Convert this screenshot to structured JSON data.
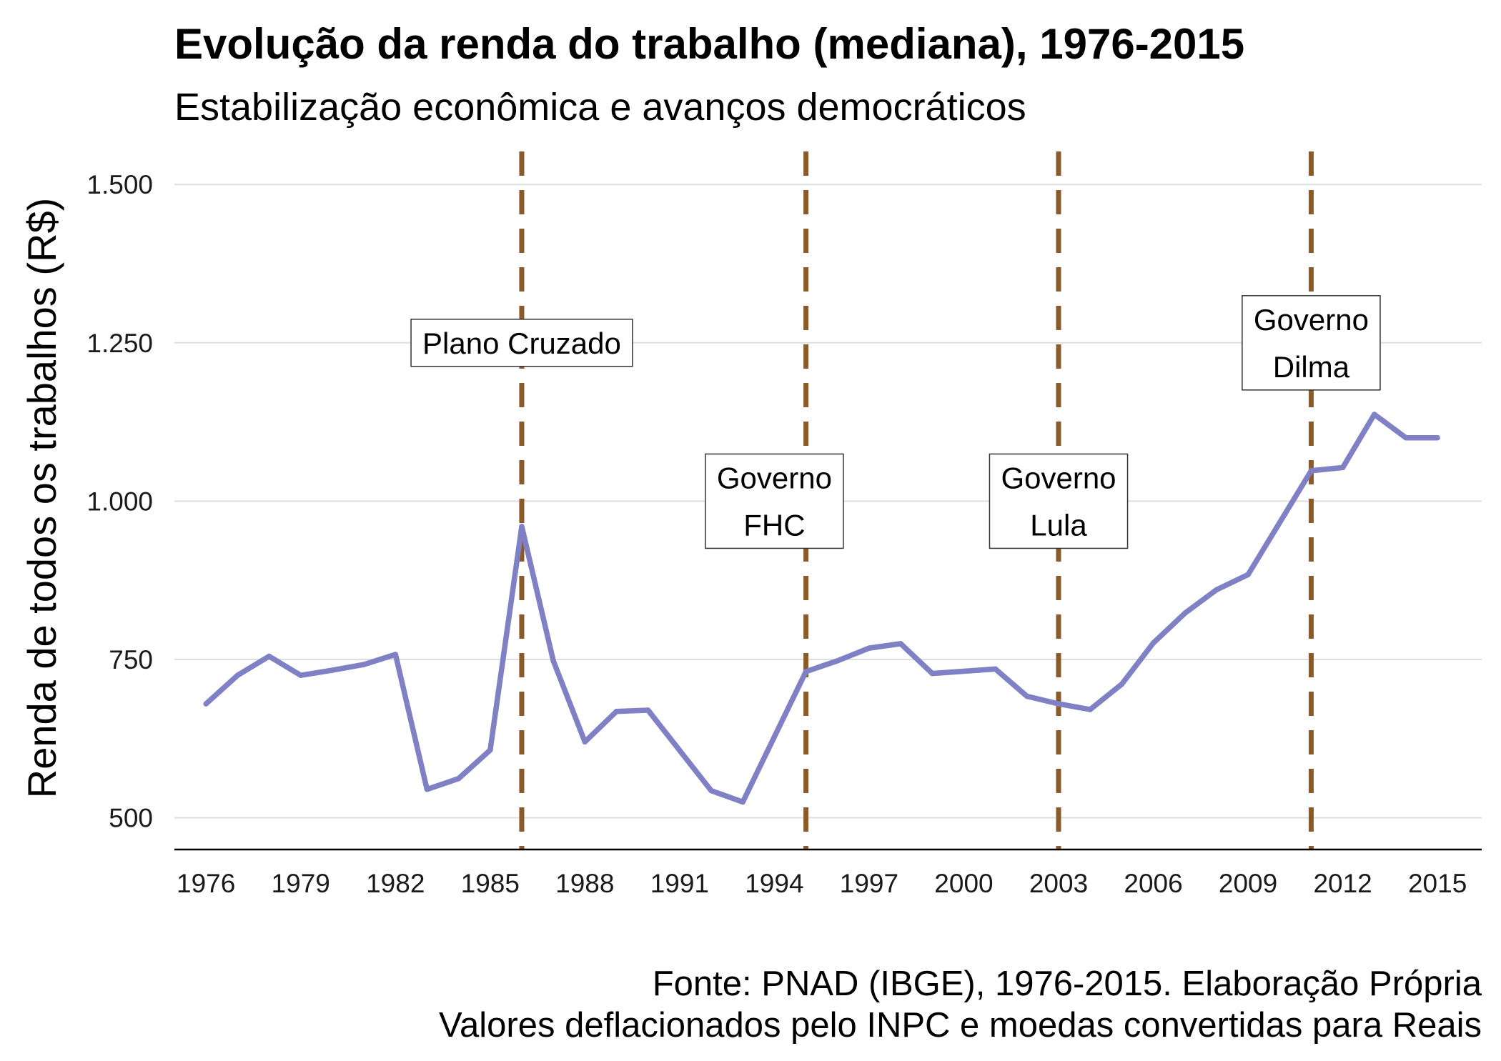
{
  "chart_data": {
    "type": "line",
    "title": "Evolução da renda do trabalho (mediana), 1976-2015",
    "subtitle": "Estabilização econômica e avanços democráticos",
    "ylabel": "Renda de todos os trabalhos (R$)",
    "xlabel": "",
    "xlim": [
      1975,
      2016.4
    ],
    "ylim": [
      450,
      1560
    ],
    "x_ticks": [
      1976,
      1979,
      1982,
      1985,
      1988,
      1991,
      1994,
      1997,
      2000,
      2003,
      2006,
      2009,
      2012,
      2015
    ],
    "x_tick_labels": [
      "1976",
      "1979",
      "1982",
      "1985",
      "1988",
      "1991",
      "1994",
      "1997",
      "2000",
      "2003",
      "2006",
      "2009",
      "2012",
      "2015"
    ],
    "y_ticks": [
      500,
      750,
      1000,
      1250,
      1500
    ],
    "y_tick_labels": [
      "500",
      "750",
      "1.000",
      "1.250",
      "1.500"
    ],
    "grid": "horizontal",
    "series": [
      {
        "color": "#7f81c4",
        "points": [
          [
            1976,
            680
          ],
          [
            1977,
            725
          ],
          [
            1978,
            755
          ],
          [
            1979,
            725
          ],
          [
            1980,
            733
          ],
          [
            1981,
            742
          ],
          [
            1982,
            758
          ],
          [
            1983,
            545
          ],
          [
            1984,
            562
          ],
          [
            1985,
            607
          ],
          [
            1986,
            960
          ],
          [
            1987,
            748
          ],
          [
            1988,
            620
          ],
          [
            1989,
            668
          ],
          [
            1990,
            670
          ],
          [
            1992,
            543
          ],
          [
            1993,
            525
          ],
          [
            1995,
            731
          ],
          [
            1996,
            748
          ],
          [
            1997,
            768
          ],
          [
            1998,
            775
          ],
          [
            1999,
            728
          ],
          [
            2001,
            735
          ],
          [
            2002,
            692
          ],
          [
            2003,
            680
          ],
          [
            2004,
            671
          ],
          [
            2005,
            711
          ],
          [
            2006,
            776
          ],
          [
            2007,
            823
          ],
          [
            2008,
            860
          ],
          [
            2009,
            884
          ],
          [
            2011,
            1048
          ],
          [
            2012,
            1053
          ],
          [
            2013,
            1137
          ],
          [
            2014,
            1100
          ],
          [
            2015,
            1100
          ]
        ]
      }
    ],
    "vlines": {
      "color": "#8b5a2b",
      "style": "dashed",
      "x": [
        1986,
        1995,
        2003,
        2011
      ]
    },
    "annotations": [
      {
        "lines": [
          "Plano Cruzado"
        ],
        "x": 1986,
        "y": 1250
      },
      {
        "lines": [
          "Governo",
          "FHC"
        ],
        "x": 1994,
        "y": 1000
      },
      {
        "lines": [
          "Governo",
          "Lula"
        ],
        "x": 2003,
        "y": 1000
      },
      {
        "lines": [
          "Governo",
          "Dilma"
        ],
        "x": 2011,
        "y": 1250
      }
    ],
    "caption": [
      "Fonte: PNAD (IBGE), 1976-2015. Elaboração Própria",
      "Valores deflacionados pelo INPC e moedas convertidas para Reais"
    ]
  }
}
